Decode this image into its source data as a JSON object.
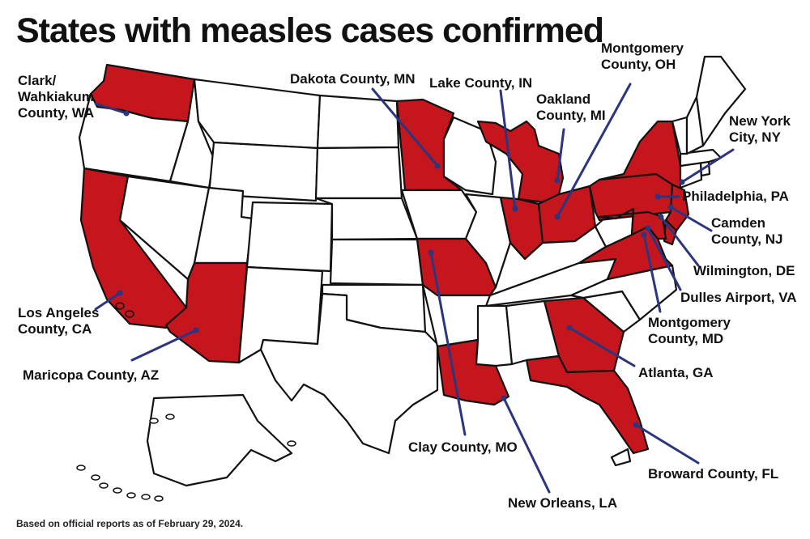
{
  "title": "States with measles cases confirmed",
  "footnote": "Based on official reports as of February 29, 2024.",
  "colors": {
    "affected": "#c4161c",
    "unaffected": "#ffffff",
    "outline": "#111111",
    "leader": "#2b3580"
  },
  "affected_states": [
    "WA",
    "CA",
    "AZ",
    "MN",
    "MO",
    "LA",
    "IN",
    "MI",
    "OH",
    "PA",
    "NY",
    "NJ",
    "DE",
    "MD",
    "VA",
    "GA",
    "FL"
  ],
  "locations": [
    {
      "label": "Clark/\nWahkiakum\nCounty, WA",
      "state": "WA"
    },
    {
      "label": "Dakota County, MN",
      "state": "MN"
    },
    {
      "label": "Lake County, IN",
      "state": "IN"
    },
    {
      "label": "Montgomery\nCounty, OH",
      "state": "OH"
    },
    {
      "label": "Oakland\nCounty, MI",
      "state": "MI"
    },
    {
      "label": "New York\nCity, NY",
      "state": "NY"
    },
    {
      "label": "Philadelphia, PA",
      "state": "PA"
    },
    {
      "label": "Camden\nCounty, NJ",
      "state": "NJ"
    },
    {
      "label": "Wilmington, DE",
      "state": "DE"
    },
    {
      "label": "Dulles Airport, VA",
      "state": "VA"
    },
    {
      "label": "Montgomery\nCounty, MD",
      "state": "MD"
    },
    {
      "label": "Atlanta, GA",
      "state": "GA"
    },
    {
      "label": "Broward County, FL",
      "state": "FL"
    },
    {
      "label": "New Orleans, LA",
      "state": "LA"
    },
    {
      "label": "Clay County, MO",
      "state": "MO"
    },
    {
      "label": "Maricopa County, AZ",
      "state": "AZ"
    },
    {
      "label": "Los Angeles\nCounty, CA",
      "state": "CA"
    }
  ]
}
